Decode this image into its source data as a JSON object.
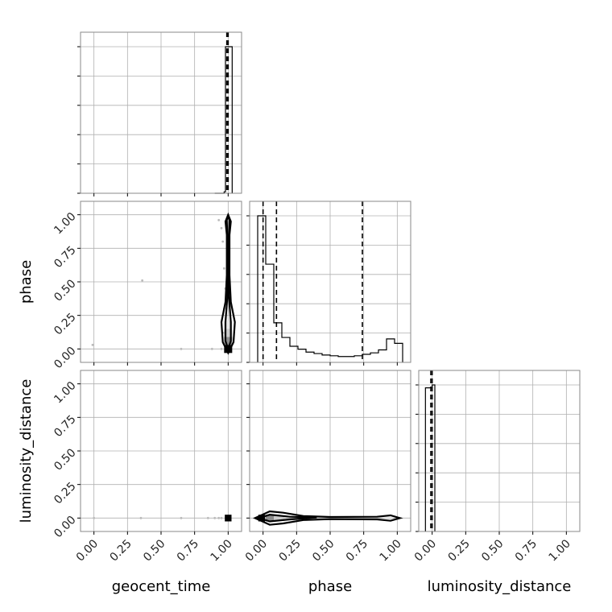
{
  "chart_data": {
    "type": "corner",
    "parameters": [
      "geocent_time",
      "phase",
      "luminosity_distance"
    ],
    "axis_labels": {
      "x": [
        "geocent_time",
        "phase",
        "luminosity_distance"
      ],
      "y": [
        "",
        "phase",
        "luminosity_distance"
      ]
    },
    "range": [
      -0.1,
      1.1
    ],
    "ticks": [
      0.0,
      0.25,
      0.5,
      0.75,
      1.0
    ],
    "tick_labels": [
      "0.00",
      "0.25",
      "0.50",
      "0.75",
      "1.00"
    ],
    "grid": true,
    "histograms": [
      {
        "param": "geocent_time",
        "bin_edges": [
          0.9,
          0.97,
          0.98,
          1.03
        ],
        "counts": [
          0,
          0.01,
          1.0
        ],
        "quantiles": [
          0.99,
          1.0
        ]
      },
      {
        "param": "phase",
        "bin_edges": [
          -0.04,
          0.02,
          0.08,
          0.14,
          0.2,
          0.26,
          0.32,
          0.38,
          0.44,
          0.5,
          0.56,
          0.62,
          0.68,
          0.74,
          0.8,
          0.86,
          0.92,
          0.98,
          1.04
        ],
        "counts": [
          1.0,
          0.67,
          0.27,
          0.17,
          0.11,
          0.09,
          0.07,
          0.06,
          0.05,
          0.045,
          0.04,
          0.04,
          0.045,
          0.055,
          0.065,
          0.085,
          0.16,
          0.13
        ],
        "quantiles": [
          0.0,
          0.1,
          0.74
        ]
      },
      {
        "param": "luminosity_distance",
        "bin_edges": [
          -0.05,
          0.0,
          0.02
        ],
        "counts": [
          0.98,
          1.0
        ],
        "quantiles": [
          -0.01,
          0.0
        ]
      }
    ],
    "pairs": [
      {
        "x": "geocent_time",
        "y": "phase",
        "points": [
          [
            -0.01,
            0.03
          ],
          [
            0.36,
            0.51
          ],
          [
            0.65,
            0.0
          ],
          [
            0.88,
            0.0
          ],
          [
            0.93,
            0.96
          ],
          [
            0.95,
            0.9
          ],
          [
            0.96,
            0.8
          ],
          [
            0.97,
            0.6
          ],
          [
            0.97,
            0.3
          ],
          [
            0.98,
            0.45
          ],
          [
            0.95,
            0.0
          ],
          [
            0.97,
            0.12
          ]
        ],
        "hist_cells": [
          {
            "x": 1.0,
            "y": 0.0,
            "w": 0.06,
            "h": 0.06,
            "shade": 0.0
          },
          {
            "x": 1.0,
            "y": 0.06,
            "w": 0.06,
            "h": 0.06,
            "shade": 0.55
          },
          {
            "x": 1.0,
            "y": 0.12,
            "w": 0.06,
            "h": 0.06,
            "shade": 0.8
          },
          {
            "x": 1.0,
            "y": 0.18,
            "w": 0.06,
            "h": 0.06,
            "shade": 0.9
          }
        ],
        "contours": [
          [
            [
              1.0,
              -0.03
            ],
            [
              1.04,
              0.05
            ],
            [
              1.05,
              0.2
            ],
            [
              1.02,
              0.35
            ],
            [
              1.01,
              0.55
            ],
            [
              1.01,
              0.85
            ],
            [
              1.02,
              0.95
            ],
            [
              1.0,
              1.0
            ],
            [
              0.98,
              0.95
            ],
            [
              0.99,
              0.85
            ],
            [
              0.99,
              0.55
            ],
            [
              0.98,
              0.35
            ],
            [
              0.95,
              0.2
            ],
            [
              0.96,
              0.05
            ],
            [
              1.0,
              -0.03
            ]
          ],
          [
            [
              1.0,
              0.0
            ],
            [
              1.02,
              0.06
            ],
            [
              1.02,
              0.2
            ],
            [
              1.005,
              0.4
            ],
            [
              1.005,
              0.8
            ],
            [
              1.01,
              0.96
            ],
            [
              1.0,
              0.99
            ],
            [
              0.99,
              0.96
            ],
            [
              0.995,
              0.8
            ],
            [
              0.995,
              0.4
            ],
            [
              0.98,
              0.2
            ],
            [
              0.98,
              0.06
            ],
            [
              1.0,
              0.0
            ]
          ]
        ]
      },
      {
        "x": "geocent_time",
        "y": "luminosity_distance",
        "points": [
          [
            0.0,
            0.0
          ],
          [
            0.35,
            0.0
          ],
          [
            0.65,
            0.0
          ],
          [
            0.85,
            0.0
          ],
          [
            0.9,
            0.0
          ],
          [
            0.93,
            0.0
          ],
          [
            0.95,
            0.0
          ]
        ],
        "hist_cells": [
          {
            "x": 1.0,
            "y": 0.0,
            "w": 0.05,
            "h": 0.05,
            "shade": 0.0
          }
        ],
        "contours": []
      },
      {
        "x": "phase",
        "y": "luminosity_distance",
        "points": [],
        "hist_cells": [
          {
            "x": -0.01,
            "y": 0.0,
            "w": 0.05,
            "h": 0.05,
            "shade": 0.0
          },
          {
            "x": 0.05,
            "y": 0.0,
            "w": 0.06,
            "h": 0.05,
            "shade": 0.55
          },
          {
            "x": 0.12,
            "y": 0.0,
            "w": 0.08,
            "h": 0.04,
            "shade": 0.8
          }
        ],
        "contours": [
          [
            [
              -0.06,
              0.0
            ],
            [
              0.05,
              0.05
            ],
            [
              0.15,
              0.04
            ],
            [
              0.3,
              0.015
            ],
            [
              0.5,
              0.008
            ],
            [
              0.85,
              0.01
            ],
            [
              0.95,
              0.02
            ],
            [
              1.02,
              0.0
            ],
            [
              0.95,
              -0.02
            ],
            [
              0.85,
              -0.01
            ],
            [
              0.5,
              -0.008
            ],
            [
              0.3,
              -0.015
            ],
            [
              0.15,
              -0.04
            ],
            [
              0.05,
              -0.05
            ],
            [
              -0.06,
              0.0
            ]
          ],
          [
            [
              -0.03,
              0.0
            ],
            [
              0.05,
              0.025
            ],
            [
              0.2,
              0.01
            ],
            [
              0.4,
              0.004
            ],
            [
              0.2,
              -0.01
            ],
            [
              0.05,
              -0.025
            ],
            [
              -0.03,
              0.0
            ]
          ]
        ]
      }
    ]
  }
}
